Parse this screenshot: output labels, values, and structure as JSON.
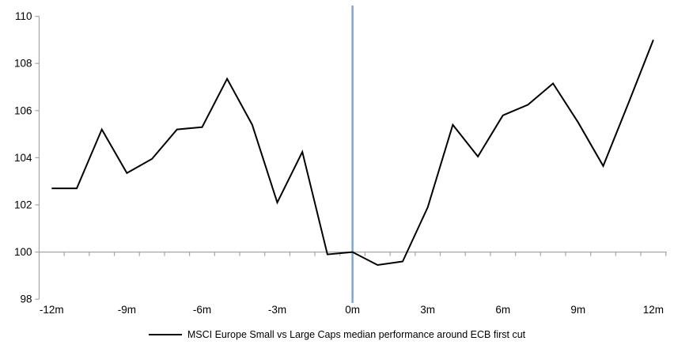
{
  "chart_data": {
    "type": "line",
    "title": "",
    "xlabel": "",
    "ylabel": "",
    "x": [
      -12,
      -11,
      -10,
      -9,
      -8,
      -7,
      -6,
      -5,
      -4,
      -3,
      -2,
      -1,
      0,
      1,
      2,
      3,
      4,
      5,
      6,
      7,
      8,
      9,
      10,
      11,
      12
    ],
    "series": [
      {
        "name": "MSCI Europe Small vs Large Caps median performance around ECB first cut",
        "color": "#000000",
        "values": [
          102.7,
          102.7,
          105.2,
          103.35,
          103.95,
          105.2,
          105.3,
          107.35,
          105.4,
          102.1,
          104.25,
          99.9,
          100.0,
          99.45,
          99.6,
          101.9,
          105.4,
          104.05,
          105.8,
          106.25,
          107.15,
          105.5,
          103.65,
          106.3,
          109.0
        ]
      }
    ],
    "ylim": [
      98,
      110
    ],
    "y_ticks": [
      98,
      100,
      102,
      104,
      106,
      108,
      110
    ],
    "x_axis_cross_value": 100,
    "x_tick_step_months": 1,
    "x_tick_labels": [
      {
        "label": "-12m",
        "pos": -12
      },
      {
        "label": "-9m",
        "pos": -9
      },
      {
        "label": "-6m",
        "pos": -6
      },
      {
        "label": "-3m",
        "pos": -3
      },
      {
        "label": "0m",
        "pos": 0
      },
      {
        "label": "3m",
        "pos": 3
      },
      {
        "label": "6m",
        "pos": 6
      },
      {
        "label": "9m",
        "pos": 9
      },
      {
        "label": "12m",
        "pos": 12
      }
    ],
    "event_line": {
      "x": 0,
      "color": "#7EA6D3"
    },
    "axis_color": "#A6A6A6",
    "grid": false,
    "legend_position": "bottom-center"
  },
  "legend": {
    "label": "MSCI Europe Small vs Large Caps median performance around ECB first cut"
  }
}
